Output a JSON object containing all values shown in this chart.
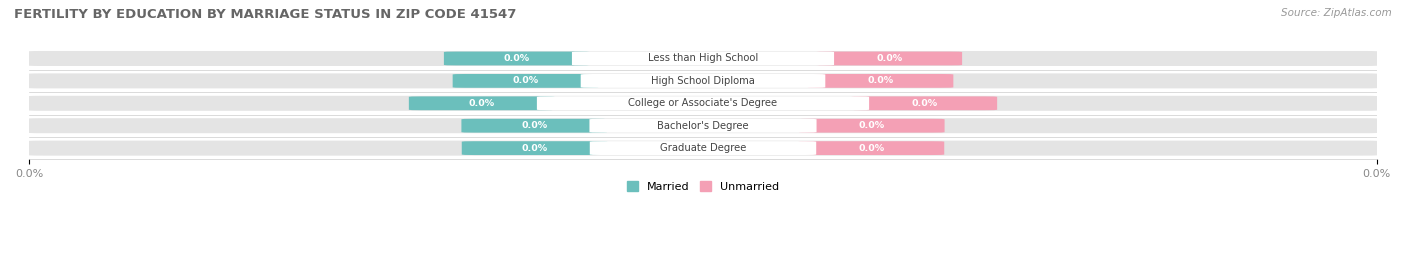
{
  "title": "FERTILITY BY EDUCATION BY MARRIAGE STATUS IN ZIP CODE 41547",
  "source": "Source: ZipAtlas.com",
  "categories": [
    "Less than High School",
    "High School Diploma",
    "College or Associate's Degree",
    "Bachelor's Degree",
    "Graduate Degree"
  ],
  "married_values": [
    0.0,
    0.0,
    0.0,
    0.0,
    0.0
  ],
  "unmarried_values": [
    0.0,
    0.0,
    0.0,
    0.0,
    0.0
  ],
  "married_color": "#6BBFBC",
  "unmarried_color": "#F4A0B5",
  "bar_bg_color": "#E4E4E4",
  "label_text_color": "#FFFFFF",
  "category_text_color": "#444444",
  "title_color": "#666666",
  "source_color": "#999999",
  "figsize": [
    14.06,
    2.69
  ],
  "dpi": 100,
  "legend_married": "Married",
  "legend_unmarried": "Unmarried"
}
